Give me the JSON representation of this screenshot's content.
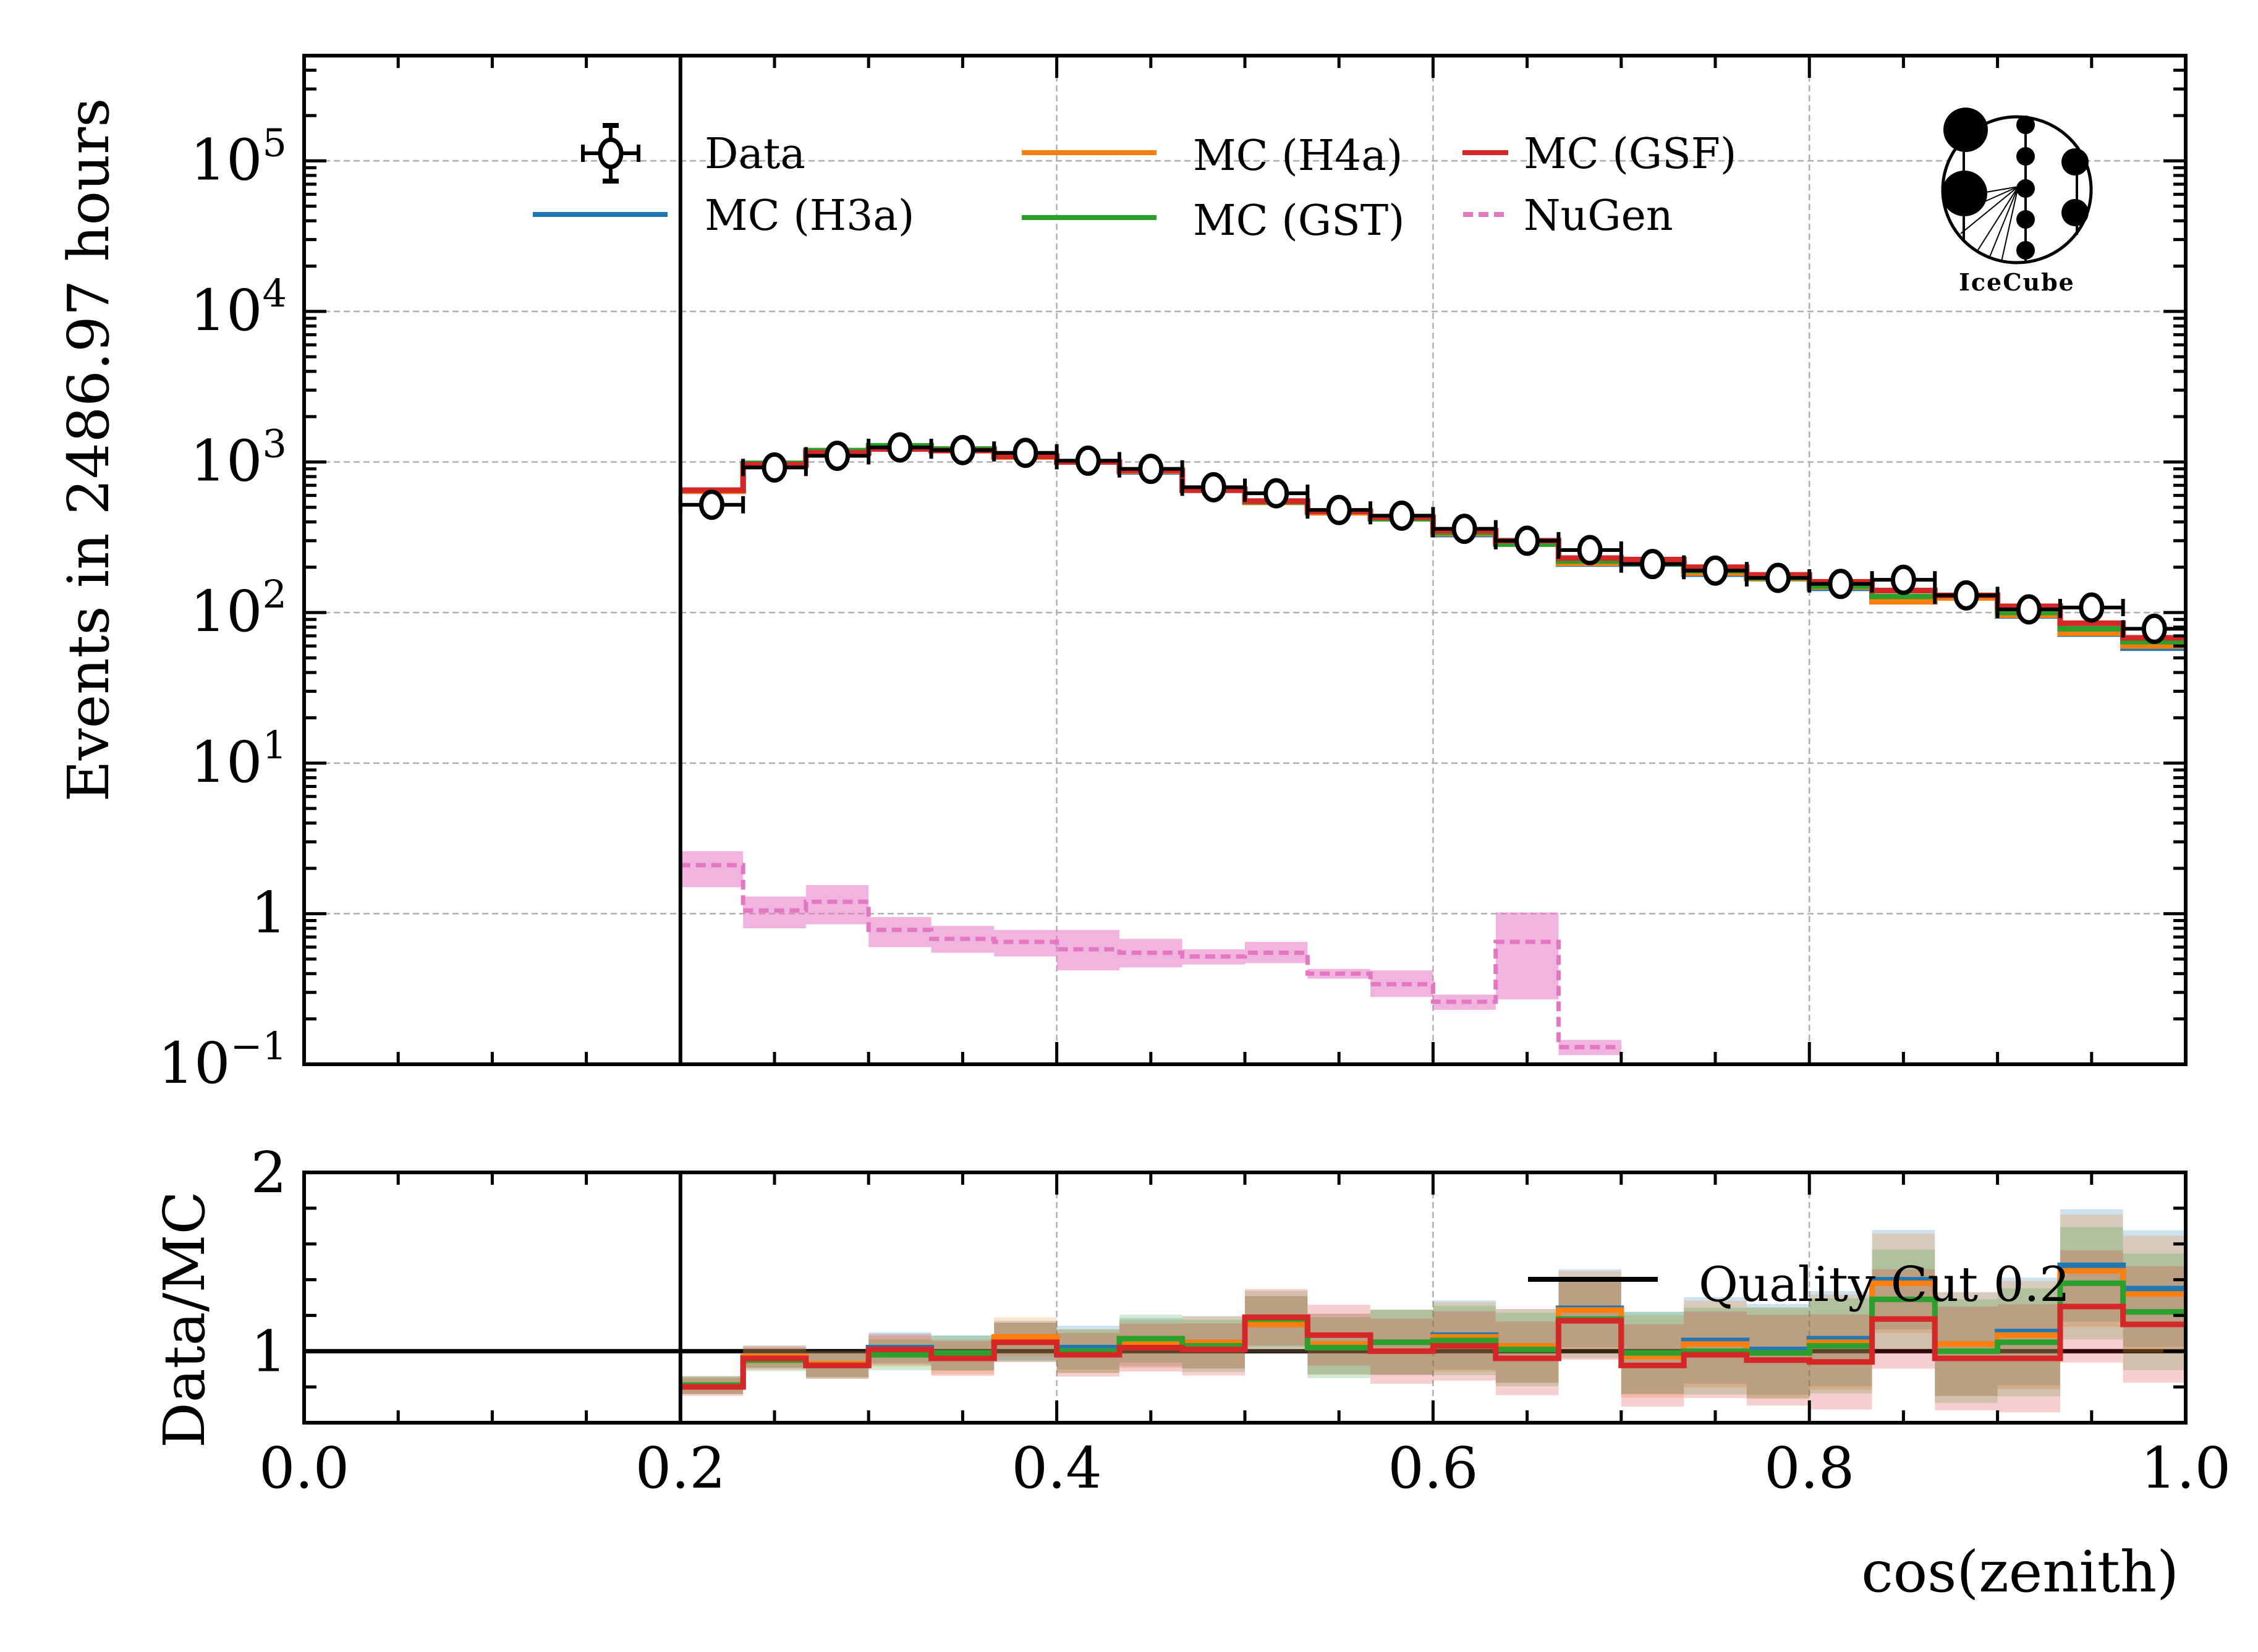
{
  "chart_data": [
    {
      "type": "line",
      "panel": "main",
      "title": "",
      "xlabel": "",
      "ylabel": "Events in 2486.97 hours",
      "yscale": "log",
      "xlim": [
        0.0,
        1.0
      ],
      "ylim": [
        0.1,
        500000
      ],
      "grid": true,
      "ytick_labels": [
        {
          "value": 0.1,
          "base": "10",
          "exp": "−1"
        },
        {
          "value": 1,
          "base": "1",
          "exp": ""
        },
        {
          "value": 10,
          "base": "10",
          "exp": "1"
        },
        {
          "value": 100,
          "base": "10",
          "exp": "2"
        },
        {
          "value": 1000,
          "base": "10",
          "exp": "3"
        },
        {
          "value": 10000,
          "base": "10",
          "exp": "4"
        },
        {
          "value": 100000,
          "base": "10",
          "exp": "5"
        }
      ],
      "quality_cut": 0.2,
      "bin_edges": [
        0.2,
        0.2333,
        0.2667,
        0.3,
        0.3333,
        0.3667,
        0.4,
        0.4333,
        0.4667,
        0.5,
        0.5333,
        0.5667,
        0.6,
        0.6333,
        0.6667,
        0.7,
        0.7333,
        0.7667,
        0.8,
        0.8333,
        0.8667,
        0.9,
        0.9333,
        0.9667,
        1.0
      ],
      "legend": {
        "placement": "top",
        "entries": [
          {
            "label": "Data",
            "style": "marker",
            "color": "#000000"
          },
          {
            "label": "MC (H3a)",
            "style": "line",
            "color": "#1f77b4"
          },
          {
            "label": "MC (H4a)",
            "style": "line",
            "color": "#ff7f0e"
          },
          {
            "label": "MC (GST)",
            "style": "line",
            "color": "#2ca02c"
          },
          {
            "label": "MC (GSF)",
            "style": "line",
            "color": "#d62728"
          },
          {
            "label": "NuGen",
            "style": "dashed",
            "color": "#e377c2"
          }
        ]
      },
      "series": [
        {
          "name": "Data",
          "color": "#000000",
          "values": [
            520,
            920,
            1100,
            1250,
            1200,
            1150,
            1020,
            900,
            680,
            620,
            480,
            440,
            360,
            300,
            260,
            210,
            190,
            170,
            155,
            165,
            130,
            105,
            108,
            78
          ]
        },
        {
          "name": "MC (H3a)",
          "color": "#1f77b4",
          "values": [
            640,
            950,
            1150,
            1220,
            1200,
            1080,
            1000,
            860,
            650,
            540,
            460,
            420,
            330,
            290,
            210,
            210,
            180,
            168,
            145,
            118,
            125,
            95,
            72,
            58
          ]
        },
        {
          "name": "MC (H4a)",
          "color": "#ff7f0e",
          "values": [
            640,
            950,
            1150,
            1220,
            1200,
            1080,
            1000,
            870,
            650,
            540,
            460,
            420,
            335,
            290,
            212,
            212,
            183,
            168,
            148,
            118,
            125,
            96,
            73,
            60
          ]
        },
        {
          "name": "MC (GST)",
          "color": "#2ca02c",
          "values": [
            650,
            980,
            1190,
            1280,
            1220,
            1090,
            1000,
            880,
            660,
            545,
            470,
            420,
            340,
            285,
            220,
            212,
            190,
            170,
            150,
            128,
            130,
            100,
            78,
            64
          ]
        },
        {
          "name": "MC (GSF)",
          "color": "#d62728",
          "values": [
            650,
            960,
            1150,
            1220,
            1190,
            1090,
            1000,
            880,
            650,
            550,
            470,
            430,
            350,
            300,
            230,
            225,
            200,
            178,
            160,
            140,
            130,
            110,
            85,
            68
          ]
        },
        {
          "name": "NuGen",
          "color": "#e377c2",
          "values": [
            2.1,
            1.05,
            1.2,
            0.78,
            0.68,
            0.65,
            0.58,
            0.55,
            0.52,
            0.55,
            0.4,
            0.34,
            0.26,
            0.65,
            0.13,
            null,
            null,
            null,
            null,
            null,
            null,
            null,
            null,
            null
          ],
          "band_low": [
            1.5,
            0.8,
            0.85,
            0.6,
            0.55,
            0.52,
            0.42,
            0.44,
            0.46,
            0.47,
            0.37,
            0.28,
            0.23,
            0.27,
            0.115,
            null,
            null,
            null,
            null,
            null,
            null,
            null,
            null,
            null
          ],
          "band_high": [
            2.6,
            1.3,
            1.55,
            0.95,
            0.83,
            0.78,
            0.78,
            0.68,
            0.58,
            0.65,
            0.43,
            0.42,
            0.29,
            1.02,
            0.145,
            null,
            null,
            null,
            null,
            null,
            null,
            null,
            null,
            null
          ]
        }
      ],
      "icecube_logo_text": "IceCube"
    },
    {
      "type": "line",
      "panel": "ratio",
      "xlabel": "cos(zenith)",
      "ylabel": "Data/MC",
      "xlim": [
        0.0,
        1.0
      ],
      "ylim": [
        0.6,
        2.0
      ],
      "grid": true,
      "xtick_labels": [
        "0.0",
        "0.2",
        "0.4",
        "0.6",
        "0.8",
        "1.0"
      ],
      "xticks": [
        0.0,
        0.2,
        0.4,
        0.6,
        0.8,
        1.0
      ],
      "ytick_labels": [
        "1",
        "2"
      ],
      "yticks": [
        1,
        2
      ],
      "reference_line": 1.0,
      "legend": {
        "placement": "right",
        "entries": [
          {
            "label": "Quality Cut 0.2",
            "style": "line",
            "color": "#000000"
          }
        ]
      },
      "series": [
        {
          "name": "MC (H3a)",
          "color": "#1f77b4",
          "values": [
            0.81,
            0.97,
            0.93,
            1.02,
            0.99,
            1.06,
            1.02,
            1.05,
            1.05,
            1.15,
            1.04,
            1.05,
            1.09,
            1.03,
            1.24,
            0.99,
            1.06,
            1.01,
            1.07,
            1.4,
            1.04,
            1.11,
            1.48,
            1.35
          ]
        },
        {
          "name": "MC (H4a)",
          "color": "#ff7f0e",
          "values": [
            0.81,
            0.97,
            0.93,
            1.0,
            0.97,
            1.08,
            1.0,
            1.04,
            1.05,
            1.15,
            1.04,
            1.05,
            1.08,
            1.03,
            1.23,
            0.97,
            1.04,
            0.99,
            1.05,
            1.38,
            1.04,
            1.09,
            1.45,
            1.32
          ]
        },
        {
          "name": "MC (GST)",
          "color": "#2ca02c",
          "values": [
            0.81,
            0.95,
            0.92,
            0.98,
            0.99,
            1.05,
            1.0,
            1.07,
            1.03,
            1.18,
            1.02,
            1.05,
            1.06,
            1.01,
            1.18,
            0.99,
            1.0,
            0.99,
            1.03,
            1.29,
            1.0,
            1.05,
            1.38,
            1.22
          ]
        },
        {
          "name": "MC (GSF)",
          "color": "#d62728",
          "values": [
            0.8,
            0.96,
            0.92,
            1.01,
            0.96,
            1.05,
            0.98,
            1.02,
            1.01,
            1.19,
            1.09,
            1.0,
            1.03,
            0.96,
            1.17,
            0.92,
            0.98,
            0.95,
            0.94,
            1.18,
            0.96,
            0.96,
            1.25,
            1.15
          ]
        }
      ]
    }
  ]
}
